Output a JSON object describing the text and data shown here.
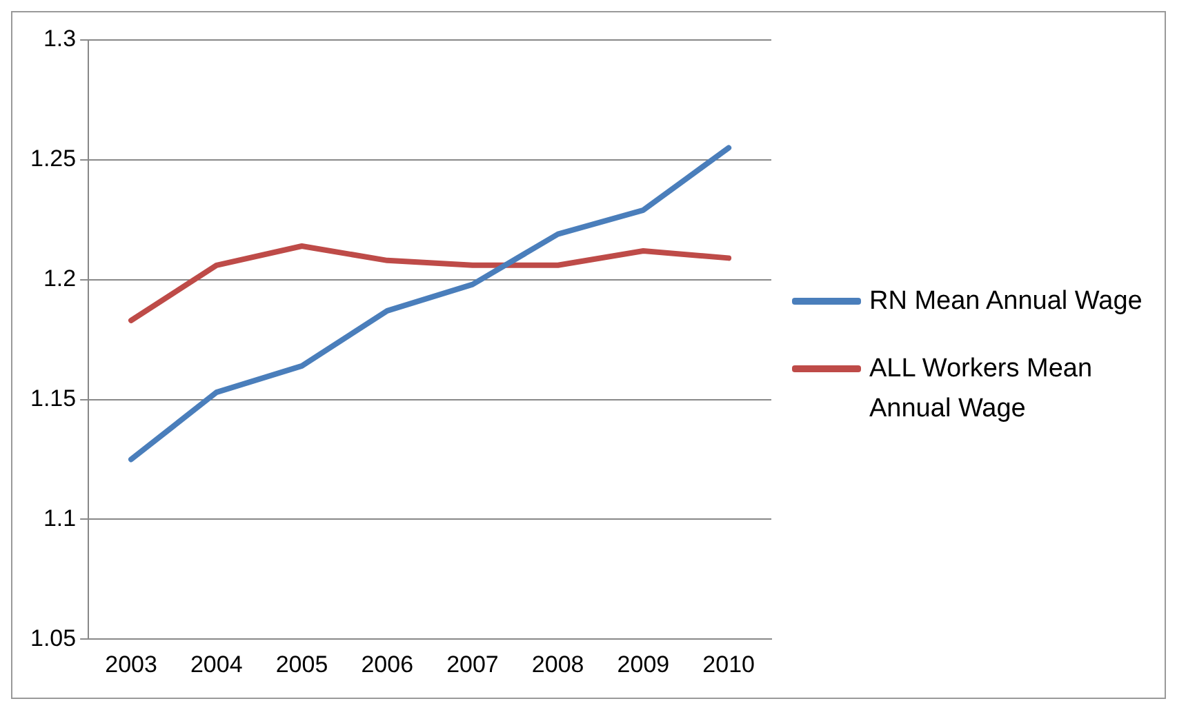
{
  "chart_data": {
    "type": "line",
    "categories": [
      "2003",
      "2004",
      "2005",
      "2006",
      "2007",
      "2008",
      "2009",
      "2010"
    ],
    "series": [
      {
        "name": "RN Mean Annual Wage",
        "color": "#4a7ebb",
        "values": [
          1.125,
          1.153,
          1.164,
          1.187,
          1.198,
          1.219,
          1.229,
          1.255
        ]
      },
      {
        "name": "ALL Workers Mean Annual Wage",
        "color": "#be4b48",
        "values": [
          1.183,
          1.206,
          1.214,
          1.208,
          1.206,
          1.206,
          1.212,
          1.209
        ]
      }
    ],
    "ylim": [
      1.05,
      1.3
    ],
    "yticks": [
      1.05,
      1.1,
      1.15,
      1.2,
      1.25,
      1.3
    ],
    "grid": "y",
    "legend": "right",
    "marker": "none",
    "line_style": "solid"
  }
}
